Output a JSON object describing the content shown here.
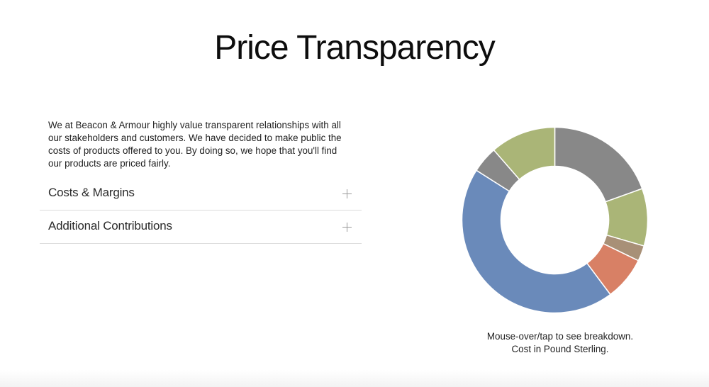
{
  "page": {
    "title": "Price Transparency"
  },
  "intro": {
    "text": "We at Beacon & Armour highly value transparent relationships with all our stakeholders and customers. We have decided to make public the costs of products offered to you. By doing so, we hope that you'll find our products are priced fairly."
  },
  "accordion": {
    "items": [
      {
        "label": "Costs & Margins"
      },
      {
        "label": "Additional Contributions"
      }
    ]
  },
  "caption": {
    "line1": "Mouse-over/tap to see breakdown.",
    "line2": "Cost in Pound Sterling."
  },
  "chart_data": {
    "type": "pie",
    "donut": true,
    "title": "",
    "currency": "Pound Sterling",
    "slices": [
      {
        "value": 19.5,
        "color": "#888888"
      },
      {
        "value": 10.0,
        "color": "#aab577"
      },
      {
        "value": 2.7,
        "color": "#a89077"
      },
      {
        "value": 7.6,
        "color": "#d88065"
      },
      {
        "value": 44.2,
        "color": "#6a8aba"
      },
      {
        "value": 4.6,
        "color": "#888888"
      },
      {
        "value": 11.4,
        "color": "#aab577"
      }
    ]
  }
}
